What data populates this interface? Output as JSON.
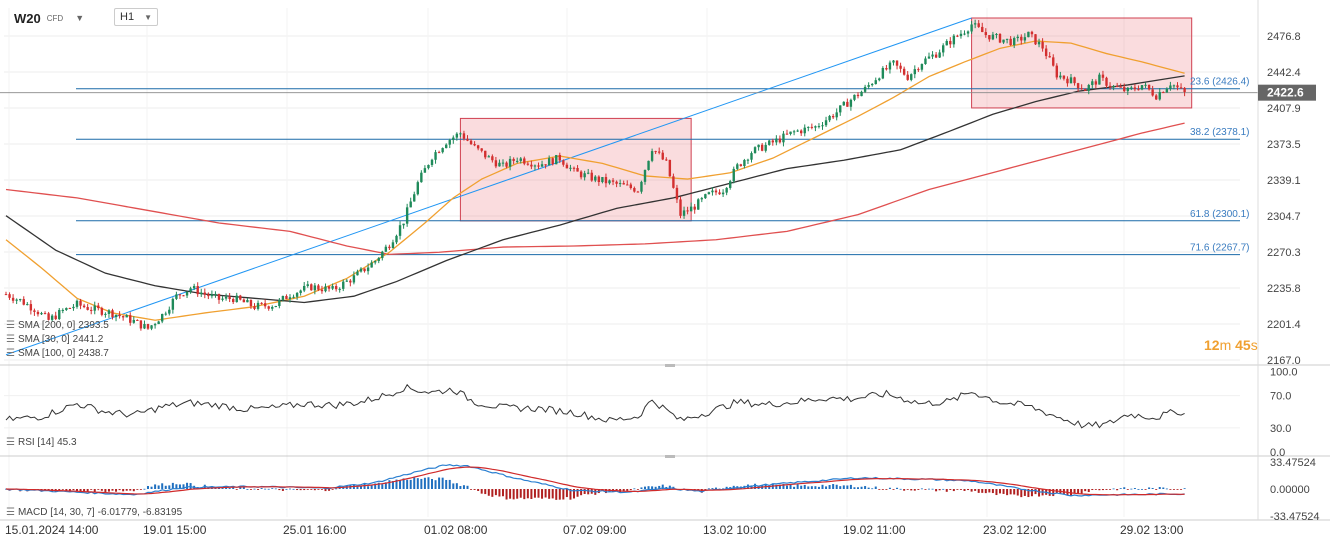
{
  "header": {
    "symbol": "W20",
    "symbol_type": "CFD",
    "timeframe": "H1"
  },
  "colors": {
    "up": "#1f8a5a",
    "down": "#d32f2f",
    "sma200": "#e05050",
    "sma30": "#f0a030",
    "sma100": "#333333",
    "trendline": "#2196f3",
    "fib": "#1a6aa8",
    "box_fill": "rgba(230,80,90,0.20)",
    "box_stroke": "#d04050",
    "macd_line": "#2a7fd0",
    "macd_signal": "#d02a2a",
    "price_tag": "#666666"
  },
  "price_axis": {
    "ticks": [
      "2476.8",
      "2442.4",
      "2407.9",
      "2373.5",
      "2339.1",
      "2304.7",
      "2270.3",
      "2235.8",
      "2201.4",
      "2167.0"
    ],
    "current_price": "2422.6"
  },
  "fib_levels": [
    {
      "label": "23.6 (2426.4)",
      "price": 2426.4
    },
    {
      "label": "38.2 (2378.1)",
      "price": 2378.1
    },
    {
      "label": "61.8 (2300.1)",
      "price": 2300.1
    },
    {
      "label": "71.6 (2267.7)",
      "price": 2267.7
    }
  ],
  "legend_main": [
    {
      "label": "SMA [200, 0]",
      "value": "2393.5"
    },
    {
      "label": "SMA [30, 0]",
      "value": "2441.2"
    },
    {
      "label": "SMA [100, 0]",
      "value": "2438.7"
    }
  ],
  "timer": {
    "minutes": "12",
    "min_unit": "m",
    "seconds": "45",
    "sec_unit": "s"
  },
  "rsi": {
    "label": "RSI [14]",
    "value": "45.3",
    "ticks": [
      "100.0",
      "70.0",
      "30.0",
      "0.0"
    ]
  },
  "macd": {
    "label": "MACD [14, 30, 7]",
    "values": "-6.01779, -6.83195",
    "ticks": [
      "33.47524",
      "0.00000",
      "-33.47524"
    ]
  },
  "time_axis": [
    "15.01.2024  14:00",
    "19.01  15:00",
    "25.01  16:00",
    "01.02  08:00",
    "07.02  09:00",
    "13.02  10:00",
    "19.02  11:00",
    "23.02  12:00",
    "29.02  13:00"
  ],
  "chart_data": {
    "type": "candlestick",
    "symbol": "W20",
    "timeframe": "H1",
    "ylim": [
      2167.0,
      2494.0
    ],
    "price_anchors": [
      [
        0,
        2230
      ],
      [
        4,
        2224
      ],
      [
        8,
        2216
      ],
      [
        12,
        2205
      ],
      [
        16,
        2214
      ],
      [
        20,
        2220
      ],
      [
        24,
        2216
      ],
      [
        30,
        2212
      ],
      [
        36,
        2204
      ],
      [
        40,
        2197
      ],
      [
        44,
        2210
      ],
      [
        48,
        2228
      ],
      [
        52,
        2236
      ],
      [
        56,
        2230
      ],
      [
        60,
        2225
      ],
      [
        64,
        2226
      ],
      [
        70,
        2218
      ],
      [
        76,
        2220
      ],
      [
        80,
        2230
      ],
      [
        86,
        2237
      ],
      [
        92,
        2234
      ],
      [
        98,
        2246
      ],
      [
        104,
        2262
      ],
      [
        108,
        2278
      ],
      [
        112,
        2300
      ],
      [
        116,
        2336
      ],
      [
        120,
        2362
      ],
      [
        124,
        2376
      ],
      [
        128,
        2384
      ],
      [
        132,
        2370
      ],
      [
        136,
        2360
      ],
      [
        140,
        2352
      ],
      [
        144,
        2360
      ],
      [
        150,
        2354
      ],
      [
        156,
        2360
      ],
      [
        160,
        2347
      ],
      [
        166,
        2340
      ],
      [
        172,
        2335
      ],
      [
        178,
        2330
      ],
      [
        182,
        2370
      ],
      [
        186,
        2355
      ],
      [
        190,
        2306
      ],
      [
        194,
        2314
      ],
      [
        198,
        2325
      ],
      [
        202,
        2330
      ],
      [
        206,
        2352
      ],
      [
        210,
        2366
      ],
      [
        216,
        2375
      ],
      [
        222,
        2385
      ],
      [
        228,
        2390
      ],
      [
        234,
        2404
      ],
      [
        238,
        2416
      ],
      [
        242,
        2426
      ],
      [
        246,
        2440
      ],
      [
        250,
        2450
      ],
      [
        254,
        2438
      ],
      [
        258,
        2452
      ],
      [
        262,
        2460
      ],
      [
        266,
        2472
      ],
      [
        270,
        2482
      ],
      [
        272,
        2488
      ],
      [
        276,
        2478
      ],
      [
        280,
        2474
      ],
      [
        284,
        2471
      ],
      [
        288,
        2478
      ],
      [
        292,
        2466
      ],
      [
        296,
        2440
      ],
      [
        300,
        2434
      ],
      [
        304,
        2426
      ],
      [
        308,
        2436
      ],
      [
        312,
        2428
      ],
      [
        316,
        2424
      ],
      [
        320,
        2430
      ],
      [
        324,
        2420
      ],
      [
        328,
        2432
      ],
      [
        332,
        2422
      ]
    ],
    "sma200": [
      [
        0,
        2330
      ],
      [
        20,
        2322
      ],
      [
        40,
        2310
      ],
      [
        60,
        2298
      ],
      [
        80,
        2290
      ],
      [
        96,
        2276
      ],
      [
        108,
        2268
      ],
      [
        122,
        2270
      ],
      [
        140,
        2275
      ],
      [
        160,
        2276
      ],
      [
        180,
        2278
      ],
      [
        200,
        2282
      ],
      [
        220,
        2290
      ],
      [
        240,
        2306
      ],
      [
        260,
        2330
      ],
      [
        280,
        2348
      ],
      [
        300,
        2366
      ],
      [
        320,
        2384
      ],
      [
        332,
        2393.5
      ]
    ],
    "sma30": [
      [
        0,
        2282
      ],
      [
        10,
        2255
      ],
      [
        20,
        2226
      ],
      [
        30,
        2212
      ],
      [
        42,
        2205
      ],
      [
        56,
        2212
      ],
      [
        70,
        2218
      ],
      [
        84,
        2228
      ],
      [
        96,
        2245
      ],
      [
        108,
        2270
      ],
      [
        118,
        2298
      ],
      [
        126,
        2322
      ],
      [
        134,
        2340
      ],
      [
        144,
        2355
      ],
      [
        156,
        2362
      ],
      [
        168,
        2355
      ],
      [
        180,
        2343
      ],
      [
        192,
        2340
      ],
      [
        204,
        2346
      ],
      [
        216,
        2360
      ],
      [
        228,
        2380
      ],
      [
        240,
        2400
      ],
      [
        250,
        2418
      ],
      [
        260,
        2438
      ],
      [
        270,
        2452
      ],
      [
        280,
        2465
      ],
      [
        290,
        2472
      ],
      [
        300,
        2470
      ],
      [
        310,
        2460
      ],
      [
        320,
        2452
      ],
      [
        332,
        2441.2
      ]
    ],
    "sma100": [
      [
        0,
        2305
      ],
      [
        14,
        2272
      ],
      [
        28,
        2250
      ],
      [
        42,
        2238
      ],
      [
        56,
        2230
      ],
      [
        70,
        2226
      ],
      [
        84,
        2222
      ],
      [
        98,
        2228
      ],
      [
        110,
        2242
      ],
      [
        124,
        2262
      ],
      [
        140,
        2282
      ],
      [
        156,
        2296
      ],
      [
        172,
        2312
      ],
      [
        188,
        2322
      ],
      [
        204,
        2336
      ],
      [
        220,
        2350
      ],
      [
        236,
        2358
      ],
      [
        252,
        2368
      ],
      [
        266,
        2386
      ],
      [
        278,
        2402
      ],
      [
        290,
        2414
      ],
      [
        302,
        2424
      ],
      [
        316,
        2430
      ],
      [
        332,
        2438.7
      ]
    ],
    "trendline": [
      [
        0,
        2172
      ],
      [
        272,
        2494
      ]
    ],
    "boxes": [
      {
        "i0": 128,
        "i1": 193,
        "p_low": 2300,
        "p_high": 2398
      },
      {
        "i0": 272,
        "i1": 334,
        "p_low": 2408,
        "p_high": 2494
      }
    ],
    "rsi_anchors": [
      [
        0,
        40
      ],
      [
        10,
        44
      ],
      [
        20,
        60
      ],
      [
        28,
        50
      ],
      [
        36,
        46
      ],
      [
        44,
        56
      ],
      [
        52,
        61
      ],
      [
        60,
        58
      ],
      [
        68,
        53
      ],
      [
        76,
        55
      ],
      [
        84,
        60
      ],
      [
        92,
        58
      ],
      [
        100,
        62
      ],
      [
        108,
        72
      ],
      [
        112,
        80
      ],
      [
        120,
        74
      ],
      [
        126,
        78
      ],
      [
        132,
        62
      ],
      [
        140,
        55
      ],
      [
        150,
        54
      ],
      [
        160,
        49
      ],
      [
        170,
        39
      ],
      [
        178,
        44
      ],
      [
        182,
        65
      ],
      [
        190,
        39
      ],
      [
        198,
        50
      ],
      [
        206,
        62
      ],
      [
        214,
        59
      ],
      [
        222,
        62
      ],
      [
        230,
        67
      ],
      [
        238,
        66
      ],
      [
        248,
        72
      ],
      [
        258,
        60
      ],
      [
        266,
        63
      ],
      [
        272,
        75
      ],
      [
        280,
        62
      ],
      [
        288,
        57
      ],
      [
        296,
        44
      ],
      [
        304,
        32
      ],
      [
        310,
        34
      ],
      [
        316,
        47
      ],
      [
        324,
        43
      ],
      [
        330,
        51
      ],
      [
        332,
        47
      ]
    ],
    "macd_anchors": [
      [
        0,
        0
      ],
      [
        20,
        -4
      ],
      [
        36,
        -7
      ],
      [
        50,
        2
      ],
      [
        70,
        3
      ],
      [
        90,
        1
      ],
      [
        104,
        8
      ],
      [
        116,
        22
      ],
      [
        124,
        30
      ],
      [
        130,
        29
      ],
      [
        144,
        13
      ],
      [
        160,
        -2
      ],
      [
        176,
        -4
      ],
      [
        186,
        1
      ],
      [
        196,
        -3
      ],
      [
        206,
        2
      ],
      [
        222,
        8
      ],
      [
        240,
        14
      ],
      [
        260,
        12
      ],
      [
        272,
        10
      ],
      [
        286,
        0
      ],
      [
        300,
        -8
      ],
      [
        316,
        -7
      ],
      [
        332,
        -6
      ]
    ]
  }
}
